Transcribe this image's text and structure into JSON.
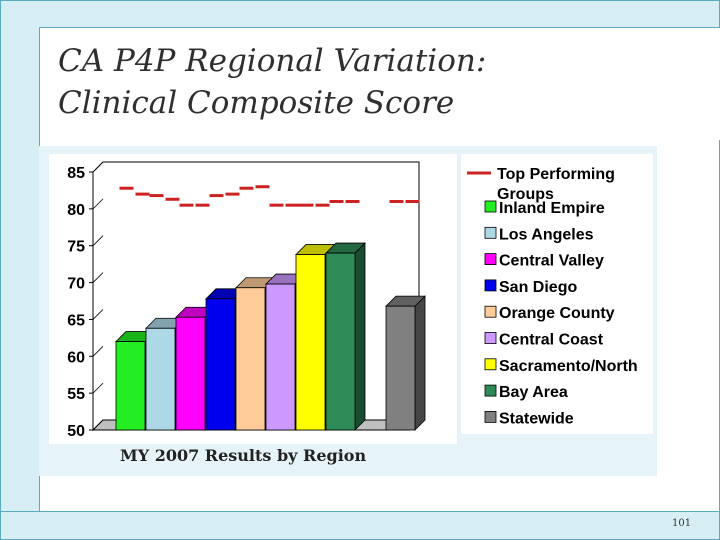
{
  "slide": {
    "title_line1": "CA P4P Regional Variation:",
    "title_line2": "Clinical Composite Score",
    "caption": "MY 2007 Results by Region",
    "page_number": "101"
  },
  "chart_data": {
    "type": "bar",
    "title": "",
    "xlabel": "",
    "ylabel": "",
    "ylim": [
      50,
      85
    ],
    "yticks": [
      50,
      55,
      60,
      65,
      70,
      75,
      80,
      85
    ],
    "grid": false,
    "legend_position": "right",
    "categories": [
      "Inland Empire",
      "Los Angeles",
      "Central Valley",
      "San Diego",
      "Orange County",
      "Central Coast",
      "Sacramento/North",
      "Bay Area",
      "Statewide"
    ],
    "values": [
      62.0,
      63.8,
      65.3,
      67.8,
      69.3,
      69.8,
      73.8,
      74.0,
      66.8
    ],
    "colors": [
      "#22ee22",
      "#add8e6",
      "#ff00ff",
      "#0000ee",
      "#ffcc99",
      "#cc99ff",
      "#ffff00",
      "#2e8b57",
      "#808080"
    ],
    "top_performing": {
      "name": "Top Performing Groups",
      "color": "#cc2222",
      "values": [
        [
          82.8,
          82.0
        ],
        [
          81.8,
          81.3
        ],
        [
          80.5,
          80.5
        ],
        [
          81.8,
          82.0
        ],
        [
          82.8,
          83.0
        ],
        [
          80.5,
          80.5
        ],
        [
          80.5,
          80.5
        ],
        [
          81.0,
          81.0
        ],
        [
          81.0,
          81.0
        ]
      ]
    }
  }
}
